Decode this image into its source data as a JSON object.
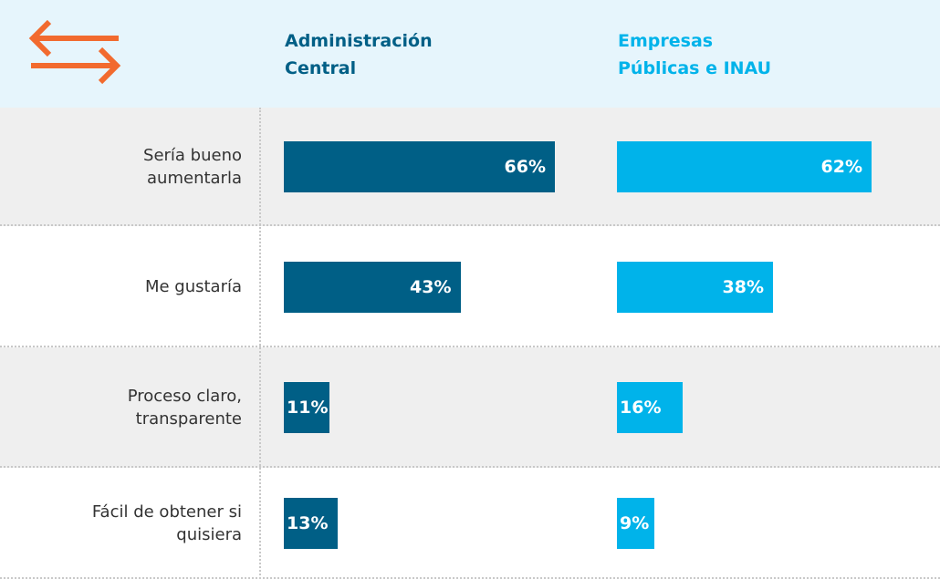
{
  "chart_data": {
    "type": "bar",
    "categories": [
      "Sería bueno aumentarla",
      "Me gustaría",
      "Proceso claro, transparente",
      "Fácil de obtener si quisiera"
    ],
    "series": [
      {
        "name": "Administración Central",
        "color": "#005f86",
        "values": [
          66,
          43,
          11,
          13
        ],
        "value_labels": [
          "66%",
          "43%",
          "11%",
          "13%"
        ]
      },
      {
        "name": "Empresas Públicas e INAU",
        "color": "#00b3ea",
        "values": [
          62,
          38,
          16,
          9
        ],
        "value_labels": [
          "62%",
          "38%",
          "16%",
          "9%"
        ]
      }
    ]
  }
}
